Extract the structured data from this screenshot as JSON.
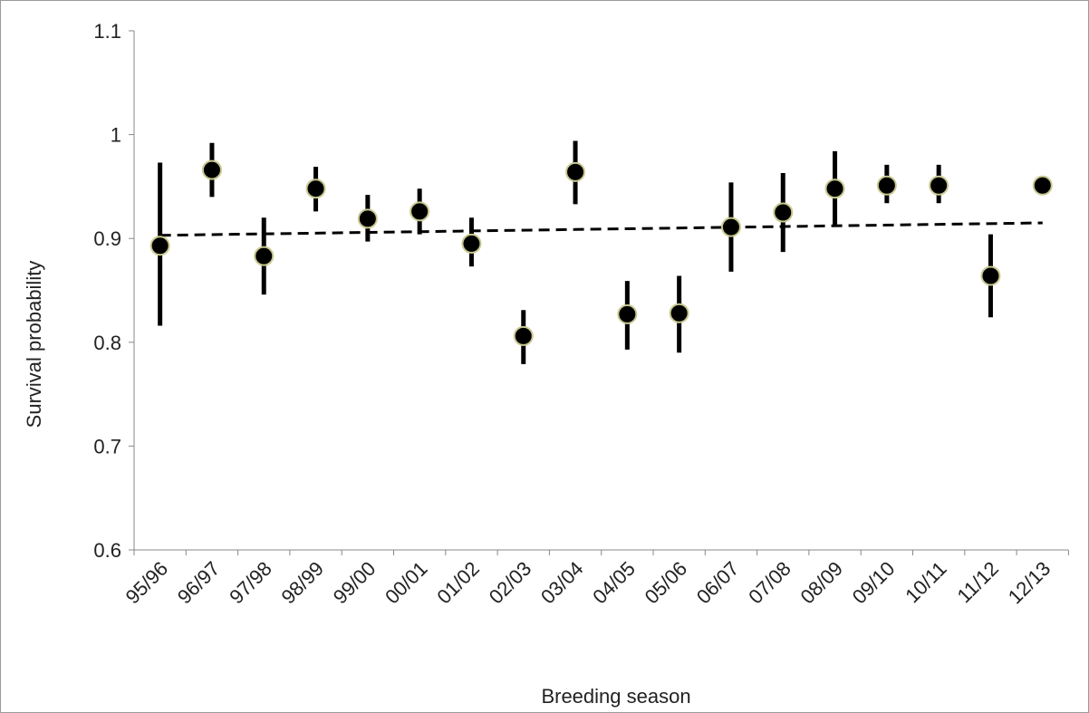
{
  "chart_data": {
    "type": "errorbar",
    "x_label": "Breeding season",
    "y_label": "Survival probability",
    "categories": [
      "95/96",
      "96/97",
      "97/98",
      "98/99",
      "99/00",
      "00/01",
      "01/02",
      "02/03",
      "03/04",
      "04/05",
      "05/06",
      "06/07",
      "07/08",
      "08/09",
      "09/10",
      "10/11",
      "11/12",
      "12/13"
    ],
    "values": [
      0.893,
      0.966,
      0.883,
      0.948,
      0.919,
      0.926,
      0.895,
      0.806,
      0.964,
      0.827,
      0.828,
      0.911,
      0.925,
      0.948,
      0.951,
      0.951,
      0.864,
      0.951
    ],
    "low": [
      0.816,
      0.94,
      0.846,
      0.926,
      0.897,
      0.904,
      0.873,
      0.779,
      0.933,
      0.793,
      0.79,
      0.868,
      0.887,
      0.913,
      0.934,
      0.934,
      0.824,
      0.945
    ],
    "high": [
      0.973,
      0.992,
      0.92,
      0.969,
      0.942,
      0.948,
      0.92,
      0.831,
      0.994,
      0.859,
      0.864,
      0.954,
      0.963,
      0.984,
      0.971,
      0.971,
      0.904,
      0.957
    ],
    "trend": [
      0.903,
      0.915
    ],
    "color": "#000000",
    "ylim": [
      0.6,
      1.1
    ],
    "yticks": [
      0.6,
      0.7,
      0.8,
      0.9,
      1,
      1.1
    ]
  }
}
